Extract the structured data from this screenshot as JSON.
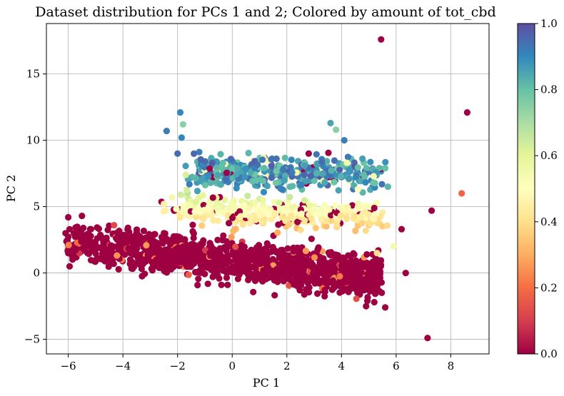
{
  "chart_data": {
    "type": "scatter",
    "title": "Dataset distribution for PCs 1 and 2; Colored by amount of tot_cbd",
    "xlabel": "PC 1",
    "ylabel": "PC 2",
    "xlim": [
      -6.8,
      9.4
    ],
    "ylim": [
      -6.1,
      18.8
    ],
    "x_ticks": [
      -6,
      -4,
      -2,
      0,
      2,
      4,
      6,
      8
    ],
    "y_ticks": [
      -5,
      0,
      5,
      10,
      15
    ],
    "x_tick_labels": [
      "−6",
      "−4",
      "−2",
      "0",
      "2",
      "4",
      "6",
      "8"
    ],
    "y_tick_labels": [
      "−5",
      "0",
      "5",
      "10",
      "15"
    ],
    "grid": true,
    "colorbar": {
      "label": "",
      "range": [
        0.0,
        1.0
      ],
      "ticks": [
        0.0,
        0.2,
        0.4,
        0.6,
        0.8,
        1.0
      ],
      "tick_labels": [
        "0.0",
        "0.2",
        "0.4",
        "0.6",
        "0.8",
        "1.0"
      ],
      "colormap": [
        "#9e0142",
        "#d53e4f",
        "#f46d43",
        "#fdae61",
        "#fee08b",
        "#ffffbf",
        "#e6f598",
        "#abdda4",
        "#66c2a5",
        "#3288bd",
        "#5e4fa2"
      ]
    },
    "clusters": [
      {
        "region": "low band",
        "color_value": 0.0,
        "x_range": [
          -6.1,
          5.5
        ],
        "y_range": [
          -2.3,
          3.6
        ],
        "approx_count": 1400
      },
      {
        "region": "middle band",
        "color_value": 0.45,
        "x_range": [
          -2.5,
          5.6
        ],
        "y_range": [
          2.5,
          6.5
        ],
        "approx_count": 350
      },
      {
        "region": "upper band",
        "color_value": 0.9,
        "x_range": [
          -2.0,
          5.7
        ],
        "y_range": [
          5.6,
          9.4
        ],
        "approx_count": 380
      }
    ],
    "notable_points": [
      {
        "x": 5.45,
        "y": 17.6,
        "c": 0.0
      },
      {
        "x": 8.6,
        "y": 12.1,
        "c": 0.0
      },
      {
        "x": 8.4,
        "y": 6.0,
        "c": 0.18
      },
      {
        "x": 7.3,
        "y": 4.7,
        "c": 0.0
      },
      {
        "x": 7.15,
        "y": -4.9,
        "c": 0.0
      },
      {
        "x": 6.35,
        "y": 0.0,
        "c": 0.0
      },
      {
        "x": 6.2,
        "y": 3.3,
        "c": 0.0
      },
      {
        "x": 3.6,
        "y": 11.3,
        "c": 0.85
      },
      {
        "x": -1.9,
        "y": 12.1,
        "c": 0.9
      },
      {
        "x": -1.8,
        "y": 11.2,
        "c": 0.75
      },
      {
        "x": -2.4,
        "y": 10.7,
        "c": 0.92
      },
      {
        "x": -1.85,
        "y": 10.2,
        "c": 0.9
      },
      {
        "x": 4.1,
        "y": 10.0,
        "c": 0.92
      },
      {
        "x": 3.8,
        "y": 10.8,
        "c": 0.75
      },
      {
        "x": -2.0,
        "y": 9.0,
        "c": 0.95
      },
      {
        "x": 5.6,
        "y": 7.9,
        "c": 0.8
      },
      {
        "x": 5.7,
        "y": 6.5,
        "c": 0.82
      },
      {
        "x": 5.9,
        "y": 2.0,
        "c": 0.55
      },
      {
        "x": 5.3,
        "y": 1.5,
        "c": 0.4
      },
      {
        "x": 5.1,
        "y": 0.3,
        "c": 0.0
      },
      {
        "x": 5.2,
        "y": 4.9,
        "c": 0.0
      },
      {
        "x": -6.0,
        "y": 4.2,
        "c": 0.0
      },
      {
        "x": -5.5,
        "y": 4.3,
        "c": 0.0
      },
      {
        "x": -6.1,
        "y": 3.0,
        "c": 0.0
      },
      {
        "x": -6.0,
        "y": 1.5,
        "c": 0.0
      },
      {
        "x": -5.95,
        "y": 0.5,
        "c": 0.0
      },
      {
        "x": -2.2,
        "y": 5.7,
        "c": 0.55
      },
      {
        "x": -2.5,
        "y": 5.2,
        "c": 0.45
      },
      {
        "x": -1.7,
        "y": 7.4,
        "c": 0.62
      },
      {
        "x": 2.8,
        "y": 9.0,
        "c": 0.0
      },
      {
        "x": 4.2,
        "y": 8.3,
        "c": 0.55
      },
      {
        "x": 4.6,
        "y": 6.3,
        "c": 0.5
      },
      {
        "x": 4.9,
        "y": -2.5,
        "c": 0.0
      },
      {
        "x": 5.6,
        "y": -2.6,
        "c": 0.0
      },
      {
        "x": 5.2,
        "y": -2.2,
        "c": 0.0
      }
    ]
  }
}
